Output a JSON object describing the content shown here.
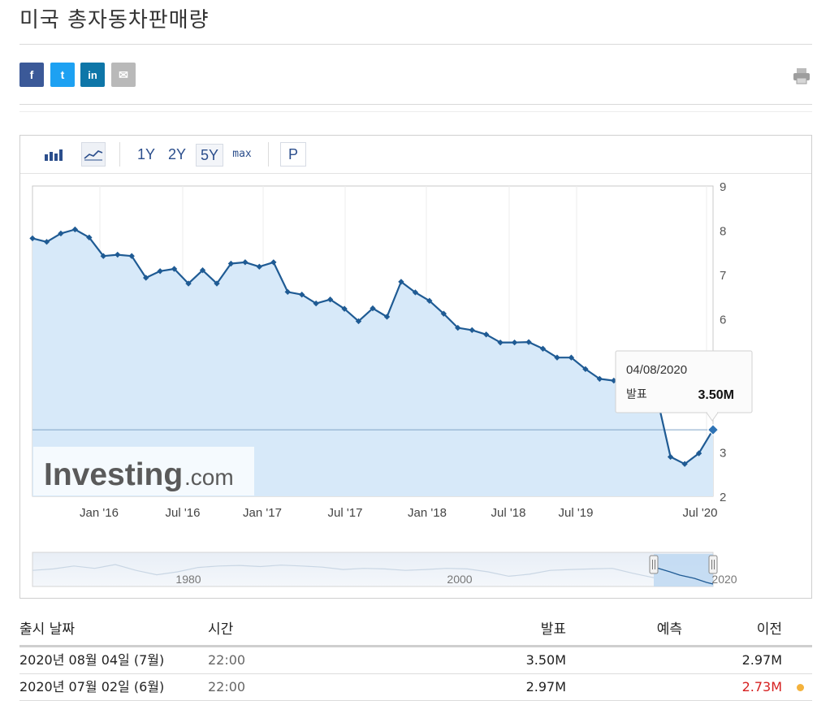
{
  "page": {
    "title": "미국 총자동차판매량"
  },
  "share": {
    "facebook": "f",
    "twitter": "t",
    "linkedin": "in",
    "mail": "✉"
  },
  "toolbar": {
    "icons": [
      "bar-chart-icon",
      "area-chart-icon"
    ],
    "ranges": [
      "1Y",
      "2Y",
      "5Y",
      "max"
    ],
    "active_range": "5Y",
    "p_label": "P"
  },
  "chart_data": {
    "type": "area",
    "title": "",
    "xlabel": "",
    "ylabel": "",
    "x_ticks": [
      "Jan '16",
      "Jul '16",
      "Jan '17",
      "Jul '17",
      "Jan '18",
      "Jul '18",
      "Jul '19",
      "Jul '20"
    ],
    "y_ticks": [
      "2",
      "3",
      "4",
      "5",
      "6",
      "7",
      "8",
      "9"
    ],
    "ylim": [
      2,
      9
    ],
    "y_unit": "M",
    "grid": true,
    "series": [
      {
        "name": "",
        "values": [
          7.82,
          7.74,
          7.93,
          8.02,
          7.84,
          7.42,
          7.45,
          7.42,
          6.93,
          7.08,
          7.13,
          6.8,
          7.1,
          6.8,
          7.25,
          7.28,
          7.18,
          7.28,
          6.61,
          6.55,
          6.35,
          6.44,
          6.23,
          5.95,
          6.24,
          6.05,
          6.84,
          6.6,
          6.41,
          6.12,
          5.8,
          5.75,
          5.65,
          5.47,
          5.47,
          5.48,
          5.33,
          5.13,
          5.13,
          4.87,
          4.65,
          4.61,
          4.62,
          4.43,
          4.3,
          2.89,
          2.73,
          2.97,
          3.5
        ]
      }
    ],
    "tooltip": {
      "date": "04/08/2020",
      "label": "발표",
      "value": "3.50M"
    },
    "watermark": "Investing.com",
    "navigator": {
      "labels": [
        "1980",
        "2000",
        "2020"
      ]
    }
  },
  "table": {
    "headers": {
      "date": "출시 날짜",
      "time": "시간",
      "actual": "발표",
      "forecast": "예측",
      "previous": "이전"
    },
    "rows": [
      {
        "date": "2020년 08월 04일 (7월)",
        "time": "22:00",
        "actual": "3.50M",
        "forecast": "",
        "previous": "2.97M",
        "prev_color": "normal"
      },
      {
        "date": "2020년 07월 02일 (6월)",
        "time": "22:00",
        "actual": "2.97M",
        "forecast": "",
        "previous": "2.73M",
        "prev_color": "#d62020"
      }
    ]
  }
}
